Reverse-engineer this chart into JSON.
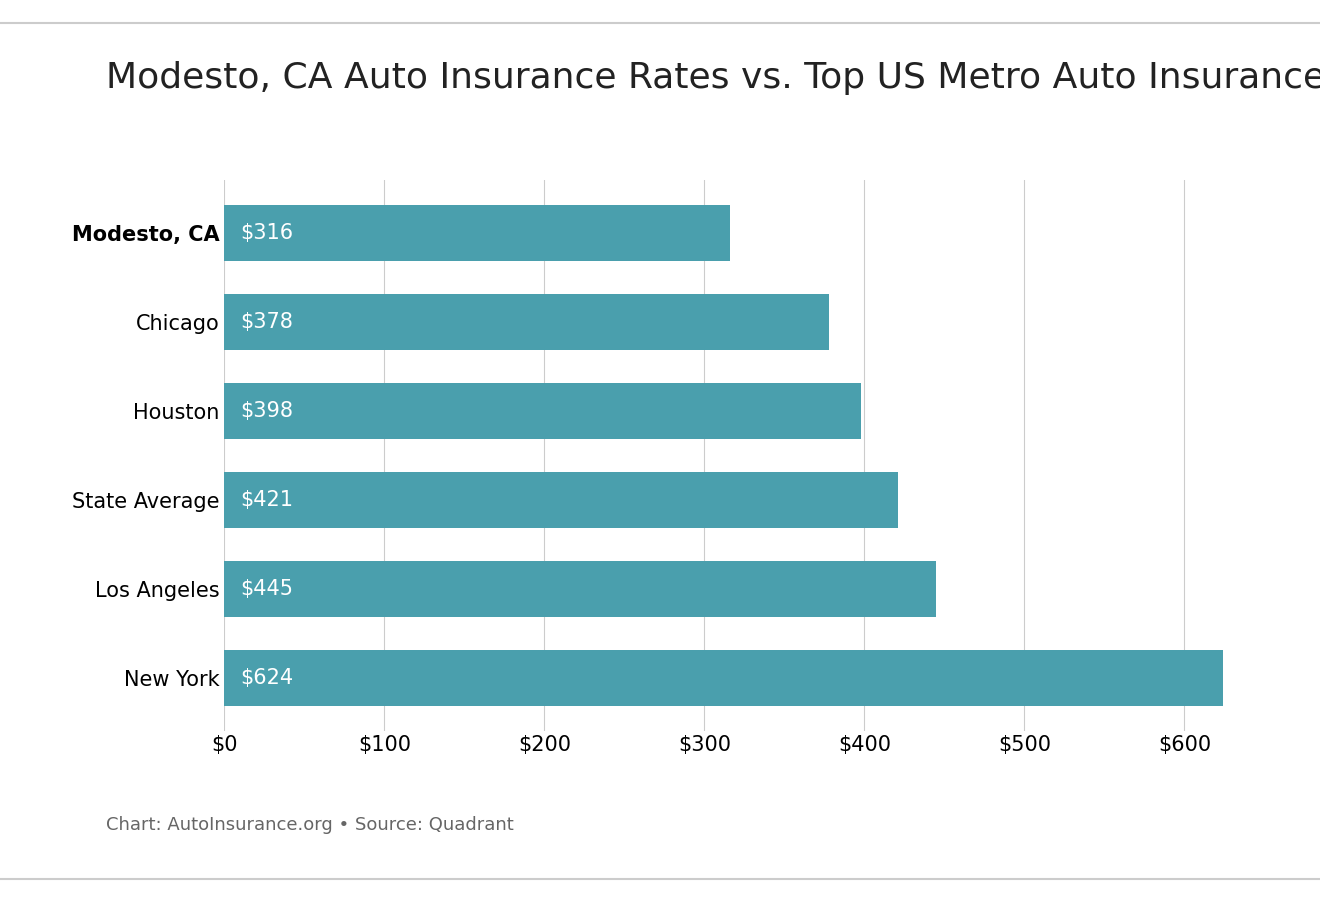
{
  "title": "Modesto, CA Auto Insurance Rates vs. Top US Metro Auto Insurance Rates",
  "categories": [
    "Modesto, CA",
    "Chicago",
    "Houston",
    "State Average",
    "Los Angeles",
    "New York"
  ],
  "values": [
    316,
    378,
    398,
    421,
    445,
    624
  ],
  "bar_color": "#4A9FAD",
  "label_color": "#ffffff",
  "title_fontsize": 26,
  "bar_label_fontsize": 15,
  "tick_label_fontsize": 15,
  "caption": "Chart: AutoInsurance.org • Source: Quadrant",
  "caption_fontsize": 13,
  "background_color": "#ffffff",
  "xlim": [
    0,
    660
  ],
  "xtick_values": [
    0,
    100,
    200,
    300,
    400,
    500,
    600
  ],
  "bar_height": 0.62,
  "line_color": "#cccccc"
}
